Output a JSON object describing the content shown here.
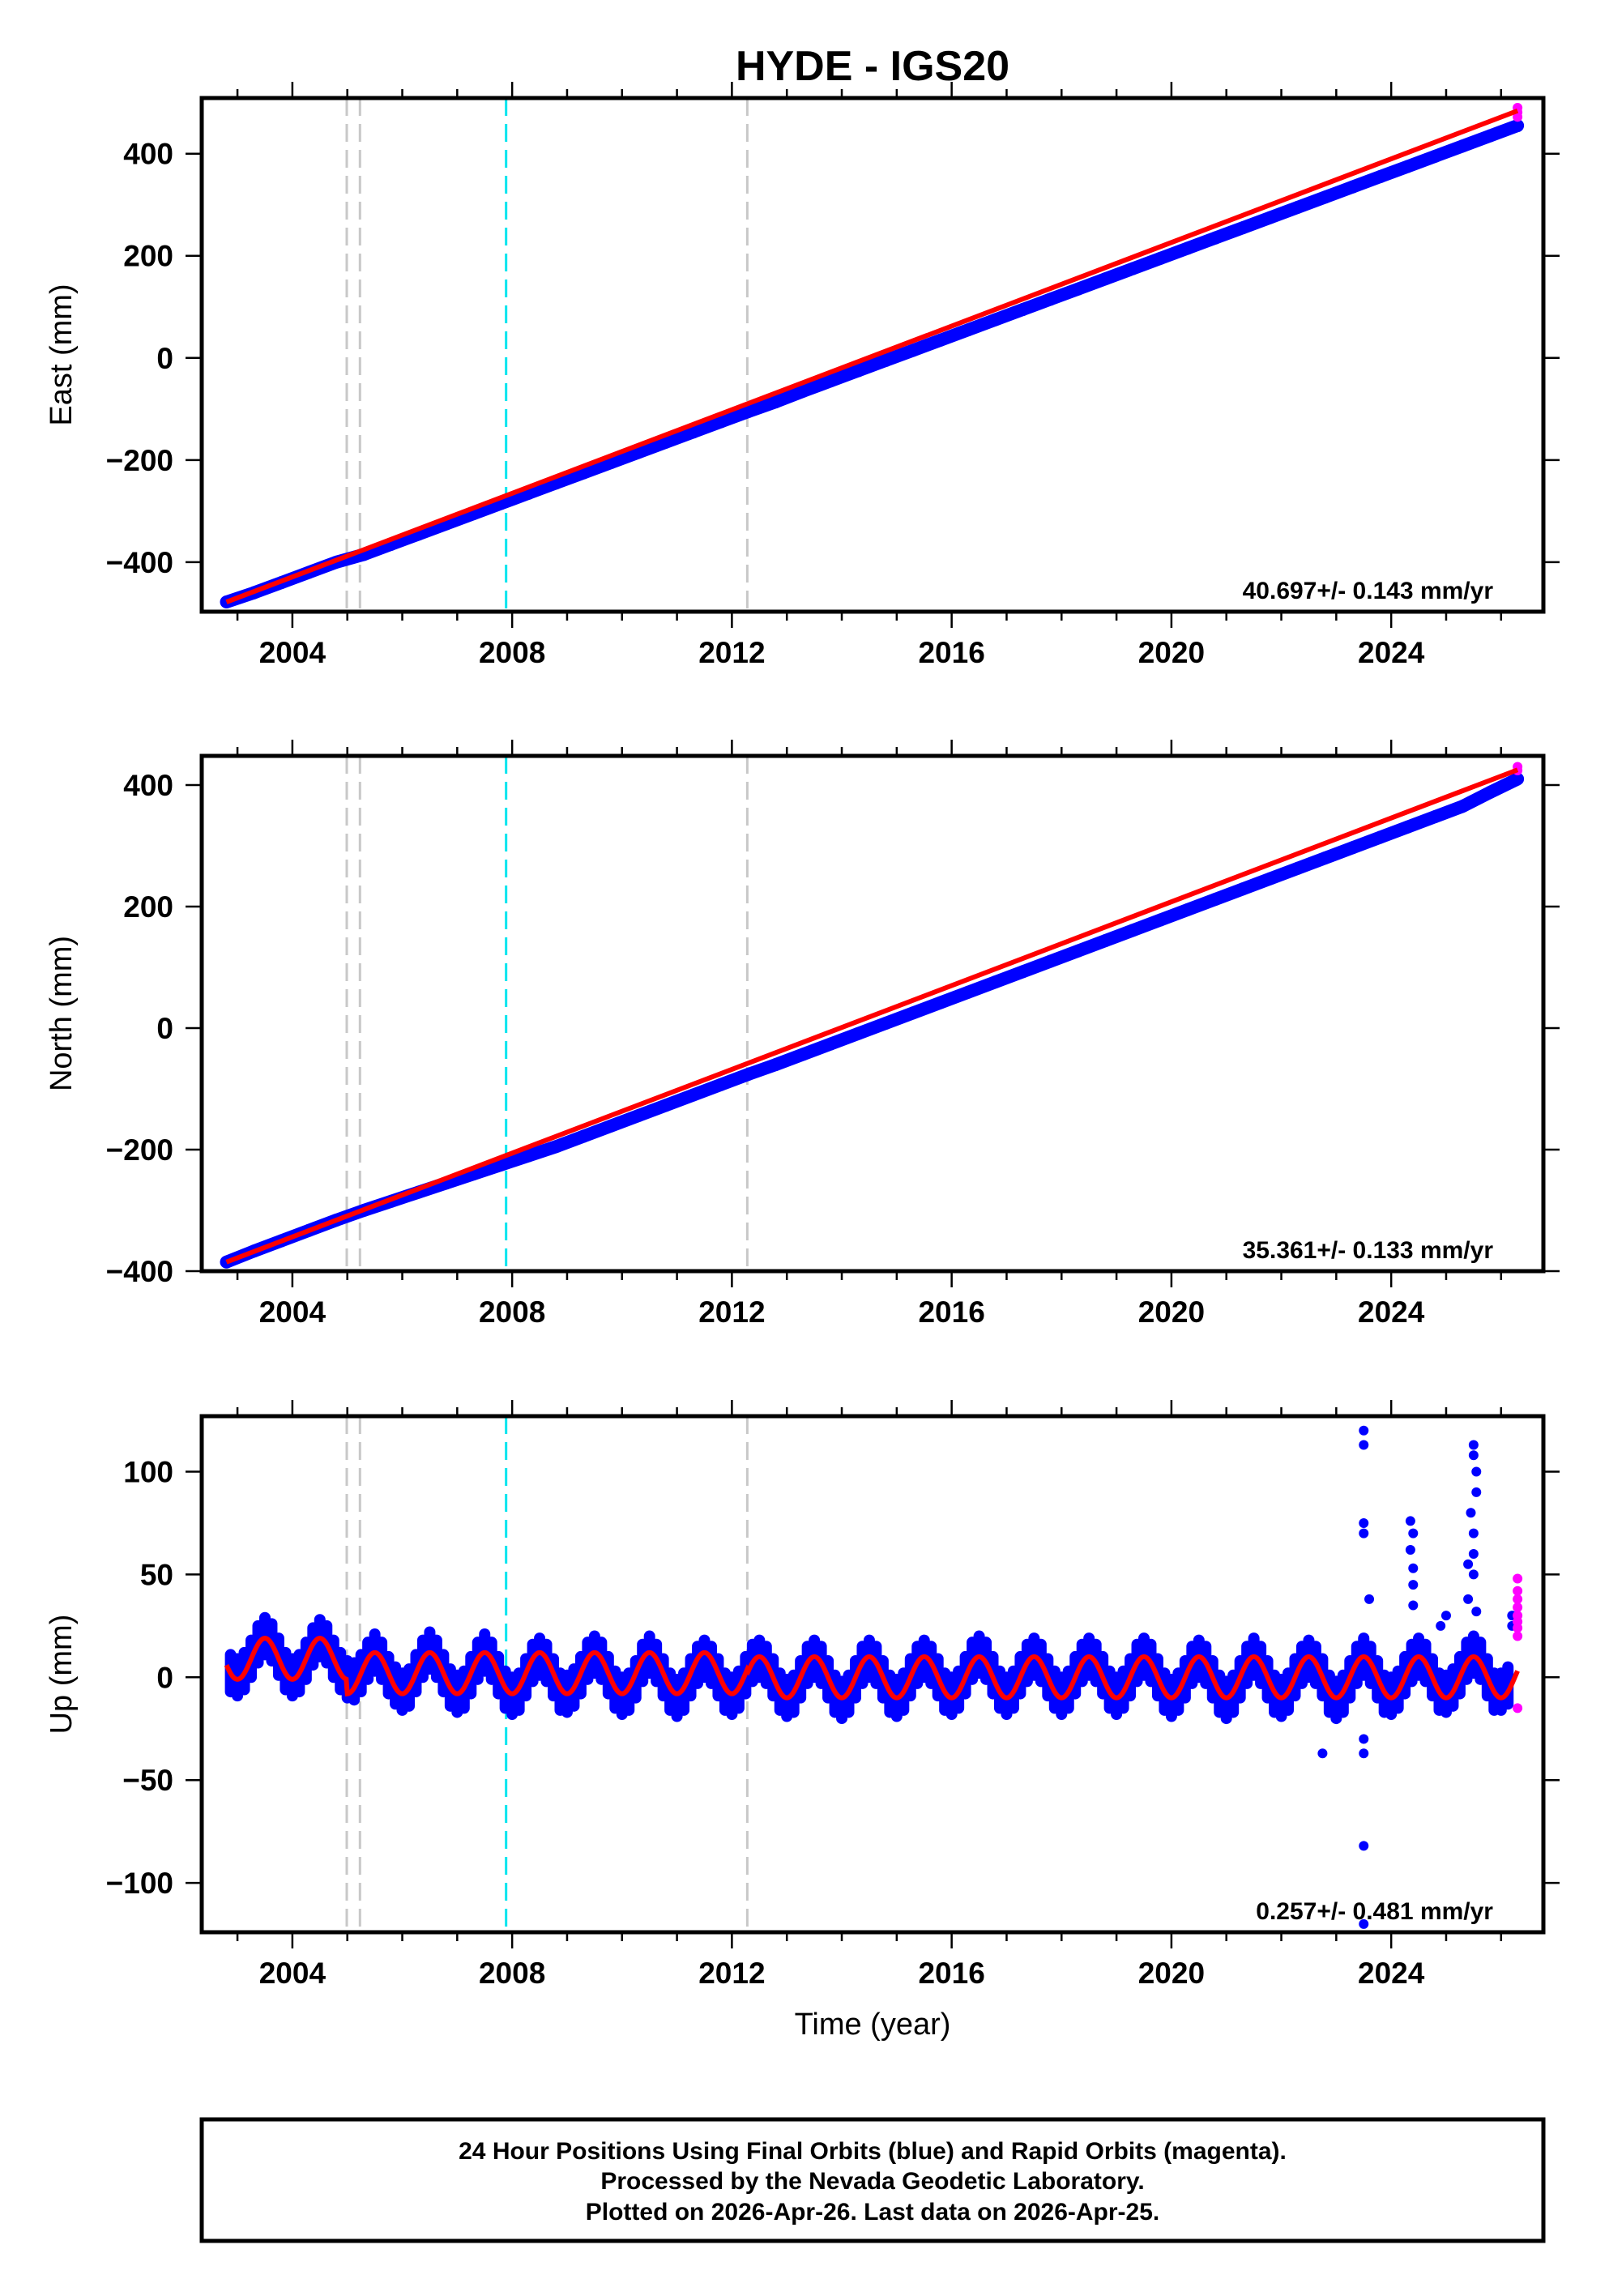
{
  "title": "HYDE - IGS20",
  "xlabel": "Time (year)",
  "footer": {
    "line1": "24 Hour Positions Using Final Orbits (blue) and Rapid Orbits (magenta).",
    "line2": "Processed by the Nevada Geodetic Laboratory.",
    "line3": "Plotted on 2026-Apr-26. Last data on 2026-Apr-25."
  },
  "colors": {
    "final": "#0000ff",
    "rapid": "#ff00ff",
    "fit": "#ff0000",
    "equipment_change": "#c8c8c8",
    "earthquake": "#00e5ee"
  },
  "chart_data": [
    {
      "type": "scatter",
      "component": "east",
      "ylabel": "East (mm)",
      "rate_text": "40.697+/- 0.143 mm/yr",
      "xlim": [
        2002.35,
        2026.77
      ],
      "ylim": [
        -497,
        509
      ],
      "xticks": [
        2004,
        2008,
        2012,
        2016,
        2020,
        2024
      ],
      "xtick_labels": [
        "2004",
        "2008",
        "2012",
        "2016",
        "2020",
        "2024"
      ],
      "yticks": [
        -400,
        -200,
        0,
        200,
        400
      ],
      "ytick_labels": [
        "−400",
        "−200",
        "0",
        "200",
        "400"
      ],
      "x_start": 2002.8,
      "x_step": 0.5,
      "values": [
        -478,
        -460,
        -440,
        -420,
        -400,
        -385,
        -365,
        -345,
        -325,
        -305,
        -285,
        -265,
        -245,
        -225,
        -205,
        -185,
        -165,
        -145,
        -125,
        -105,
        -86,
        -65,
        -45,
        -25,
        -5,
        15,
        35,
        55,
        75,
        95,
        115,
        135,
        155,
        175,
        195,
        215,
        235,
        255,
        275,
        295,
        315,
        335,
        355,
        375,
        395,
        415,
        435,
        455
      ],
      "rapid": [
        [
          2026.3,
          490
        ],
        [
          2026.3,
          481
        ],
        [
          2026.3,
          472
        ]
      ],
      "fit": [
        [
          2002.8,
          -478
        ],
        [
          2026.3,
          484
        ]
      ],
      "vlines": [
        {
          "x": 2004.99,
          "kind": "equipment_change"
        },
        {
          "x": 2005.23,
          "kind": "equipment_change"
        },
        {
          "x": 2007.89,
          "kind": "earthquake"
        },
        {
          "x": 2012.28,
          "kind": "equipment_change"
        }
      ]
    },
    {
      "type": "scatter",
      "component": "north",
      "ylabel": "North (mm)",
      "rate_text": "35.361+/- 0.133 mm/yr",
      "xlim": [
        2002.35,
        2026.77
      ],
      "ylim": [
        -400,
        448
      ],
      "xticks": [
        2004,
        2008,
        2012,
        2016,
        2020,
        2024
      ],
      "xtick_labels": [
        "2004",
        "2008",
        "2012",
        "2016",
        "2020",
        "2024"
      ],
      "yticks": [
        -400,
        -200,
        0,
        200,
        400
      ],
      "ytick_labels": [
        "−400",
        "−200",
        "0",
        "200",
        "400"
      ],
      "x_start": 2002.8,
      "x_step": 0.5,
      "values": [
        -385,
        -367,
        -350,
        -333,
        -316,
        -300,
        -285,
        -270,
        -255,
        -240,
        -225,
        -210,
        -195,
        -178,
        -161,
        -144,
        -127,
        -110,
        -93,
        -76,
        -60,
        -43,
        -26,
        -9,
        8,
        25,
        42,
        59,
        76,
        93,
        110,
        127,
        144,
        161,
        178,
        195,
        212,
        229,
        246,
        263,
        280,
        297,
        314,
        331,
        348,
        365,
        388,
        410
      ],
      "rapid": [
        [
          2026.3,
          430
        ],
        [
          2026.3,
          424
        ]
      ],
      "fit": [
        [
          2002.8,
          -385
        ],
        [
          2026.3,
          425
        ]
      ],
      "vlines": [
        {
          "x": 2004.99,
          "kind": "equipment_change"
        },
        {
          "x": 2005.23,
          "kind": "equipment_change"
        },
        {
          "x": 2007.89,
          "kind": "earthquake"
        },
        {
          "x": 2012.28,
          "kind": "equipment_change"
        }
      ]
    },
    {
      "type": "scatter",
      "component": "up",
      "ylabel": "Up (mm)",
      "rate_text": "0.257+/- 0.481 mm/yr",
      "xlim": [
        2002.35,
        2026.77
      ],
      "ylim": [
        -124,
        127
      ],
      "xticks": [
        2004,
        2008,
        2012,
        2016,
        2020,
        2024
      ],
      "xtick_labels": [
        "2004",
        "2008",
        "2012",
        "2016",
        "2020",
        "2024"
      ],
      "yticks": [
        -100,
        -50,
        0,
        50,
        100
      ],
      "ytick_labels": [
        "−100",
        "−50",
        "0",
        "50",
        "100"
      ],
      "x_start": 2002.875,
      "x_step": 0.125,
      "scatter_spread_mm": 9,
      "values": [
        2,
        0,
        3,
        9,
        16,
        20,
        17,
        10,
        3,
        0,
        2,
        8,
        15,
        19,
        16,
        9,
        3,
        -1,
        -2,
        2,
        8,
        12,
        8,
        1,
        -4,
        -7,
        -5,
        2,
        9,
        13,
        9,
        2,
        -5,
        -8,
        -6,
        1,
        8,
        12,
        8,
        1,
        -6,
        -9,
        -7,
        0,
        7,
        10,
        7,
        0,
        -7,
        -8,
        -5,
        1,
        8,
        11,
        8,
        1,
        -6,
        -9,
        -7,
        -1,
        7,
        11,
        7,
        0,
        -7,
        -10,
        -7,
        0,
        6,
        9,
        6,
        0,
        -7,
        -9,
        -6,
        1,
        7,
        9,
        6,
        0,
        -7,
        -10,
        -8,
        -1,
        6,
        9,
        6,
        -1,
        -8,
        -11,
        -8,
        -1,
        6,
        9,
        6,
        -1,
        -8,
        -10,
        -7,
        0,
        6,
        9,
        6,
        0,
        -7,
        -9,
        -6,
        1,
        8,
        11,
        8,
        1,
        -6,
        -9,
        -6,
        1,
        7,
        10,
        7,
        0,
        -6,
        -9,
        -6,
        1,
        7,
        10,
        7,
        1,
        -6,
        -9,
        -6,
        0,
        7,
        10,
        7,
        0,
        -7,
        -10,
        -7,
        -1,
        6,
        9,
        6,
        -1,
        -8,
        -11,
        -8,
        -1,
        6,
        10,
        6,
        -1,
        -8,
        -10,
        -7,
        0,
        6,
        9,
        6,
        0,
        -8,
        -11,
        -8,
        -1,
        6,
        10,
        6,
        -1,
        -8,
        -9,
        -6,
        1,
        7,
        10,
        7,
        0,
        -7,
        -8,
        -5,
        1,
        8,
        11,
        8,
        0,
        -7,
        -7,
        -4
      ],
      "outliers": [
        [
          2023.5,
          120
        ],
        [
          2023.5,
          113
        ],
        [
          2023.5,
          75
        ],
        [
          2023.5,
          70
        ],
        [
          2023.6,
          38
        ],
        [
          2023.5,
          -30
        ],
        [
          2023.5,
          -37
        ],
        [
          2023.5,
          -82
        ],
        [
          2023.5,
          -120
        ],
        [
          2024.35,
          76
        ],
        [
          2024.4,
          70
        ],
        [
          2024.35,
          62
        ],
        [
          2024.4,
          53
        ],
        [
          2024.4,
          45
        ],
        [
          2024.4,
          35
        ],
        [
          2025.4,
          55
        ],
        [
          2025.5,
          113
        ],
        [
          2025.5,
          108
        ],
        [
          2025.55,
          100
        ],
        [
          2025.55,
          90
        ],
        [
          2025.45,
          80
        ],
        [
          2025.5,
          70
        ],
        [
          2025.5,
          60
        ],
        [
          2025.5,
          50
        ],
        [
          2025.4,
          38
        ],
        [
          2025.55,
          32
        ],
        [
          2025.0,
          30
        ],
        [
          2024.9,
          25
        ],
        [
          2022.75,
          -37
        ],
        [
          2026.2,
          30
        ],
        [
          2026.2,
          25
        ]
      ],
      "rapid": [
        [
          2026.3,
          48
        ],
        [
          2026.3,
          42
        ],
        [
          2026.3,
          38
        ],
        [
          2026.3,
          34
        ],
        [
          2026.3,
          30
        ],
        [
          2026.3,
          27
        ],
        [
          2026.3,
          24
        ],
        [
          2026.3,
          20
        ],
        [
          2026.3,
          -15
        ]
      ],
      "fit_model": {
        "annual_amplitude_mm": 10,
        "peak_year_fraction": 0.5,
        "segments": [
          {
            "from": 2002.8,
            "to": 2004.99,
            "offset": 9
          },
          {
            "from": 2004.99,
            "to": 2012.28,
            "offset": 2
          },
          {
            "from": 2012.28,
            "to": 2026.3,
            "offset": 0
          }
        ]
      },
      "vlines": [
        {
          "x": 2004.99,
          "kind": "equipment_change"
        },
        {
          "x": 2005.23,
          "kind": "equipment_change"
        },
        {
          "x": 2007.89,
          "kind": "earthquake"
        },
        {
          "x": 2012.28,
          "kind": "equipment_change"
        }
      ]
    }
  ]
}
